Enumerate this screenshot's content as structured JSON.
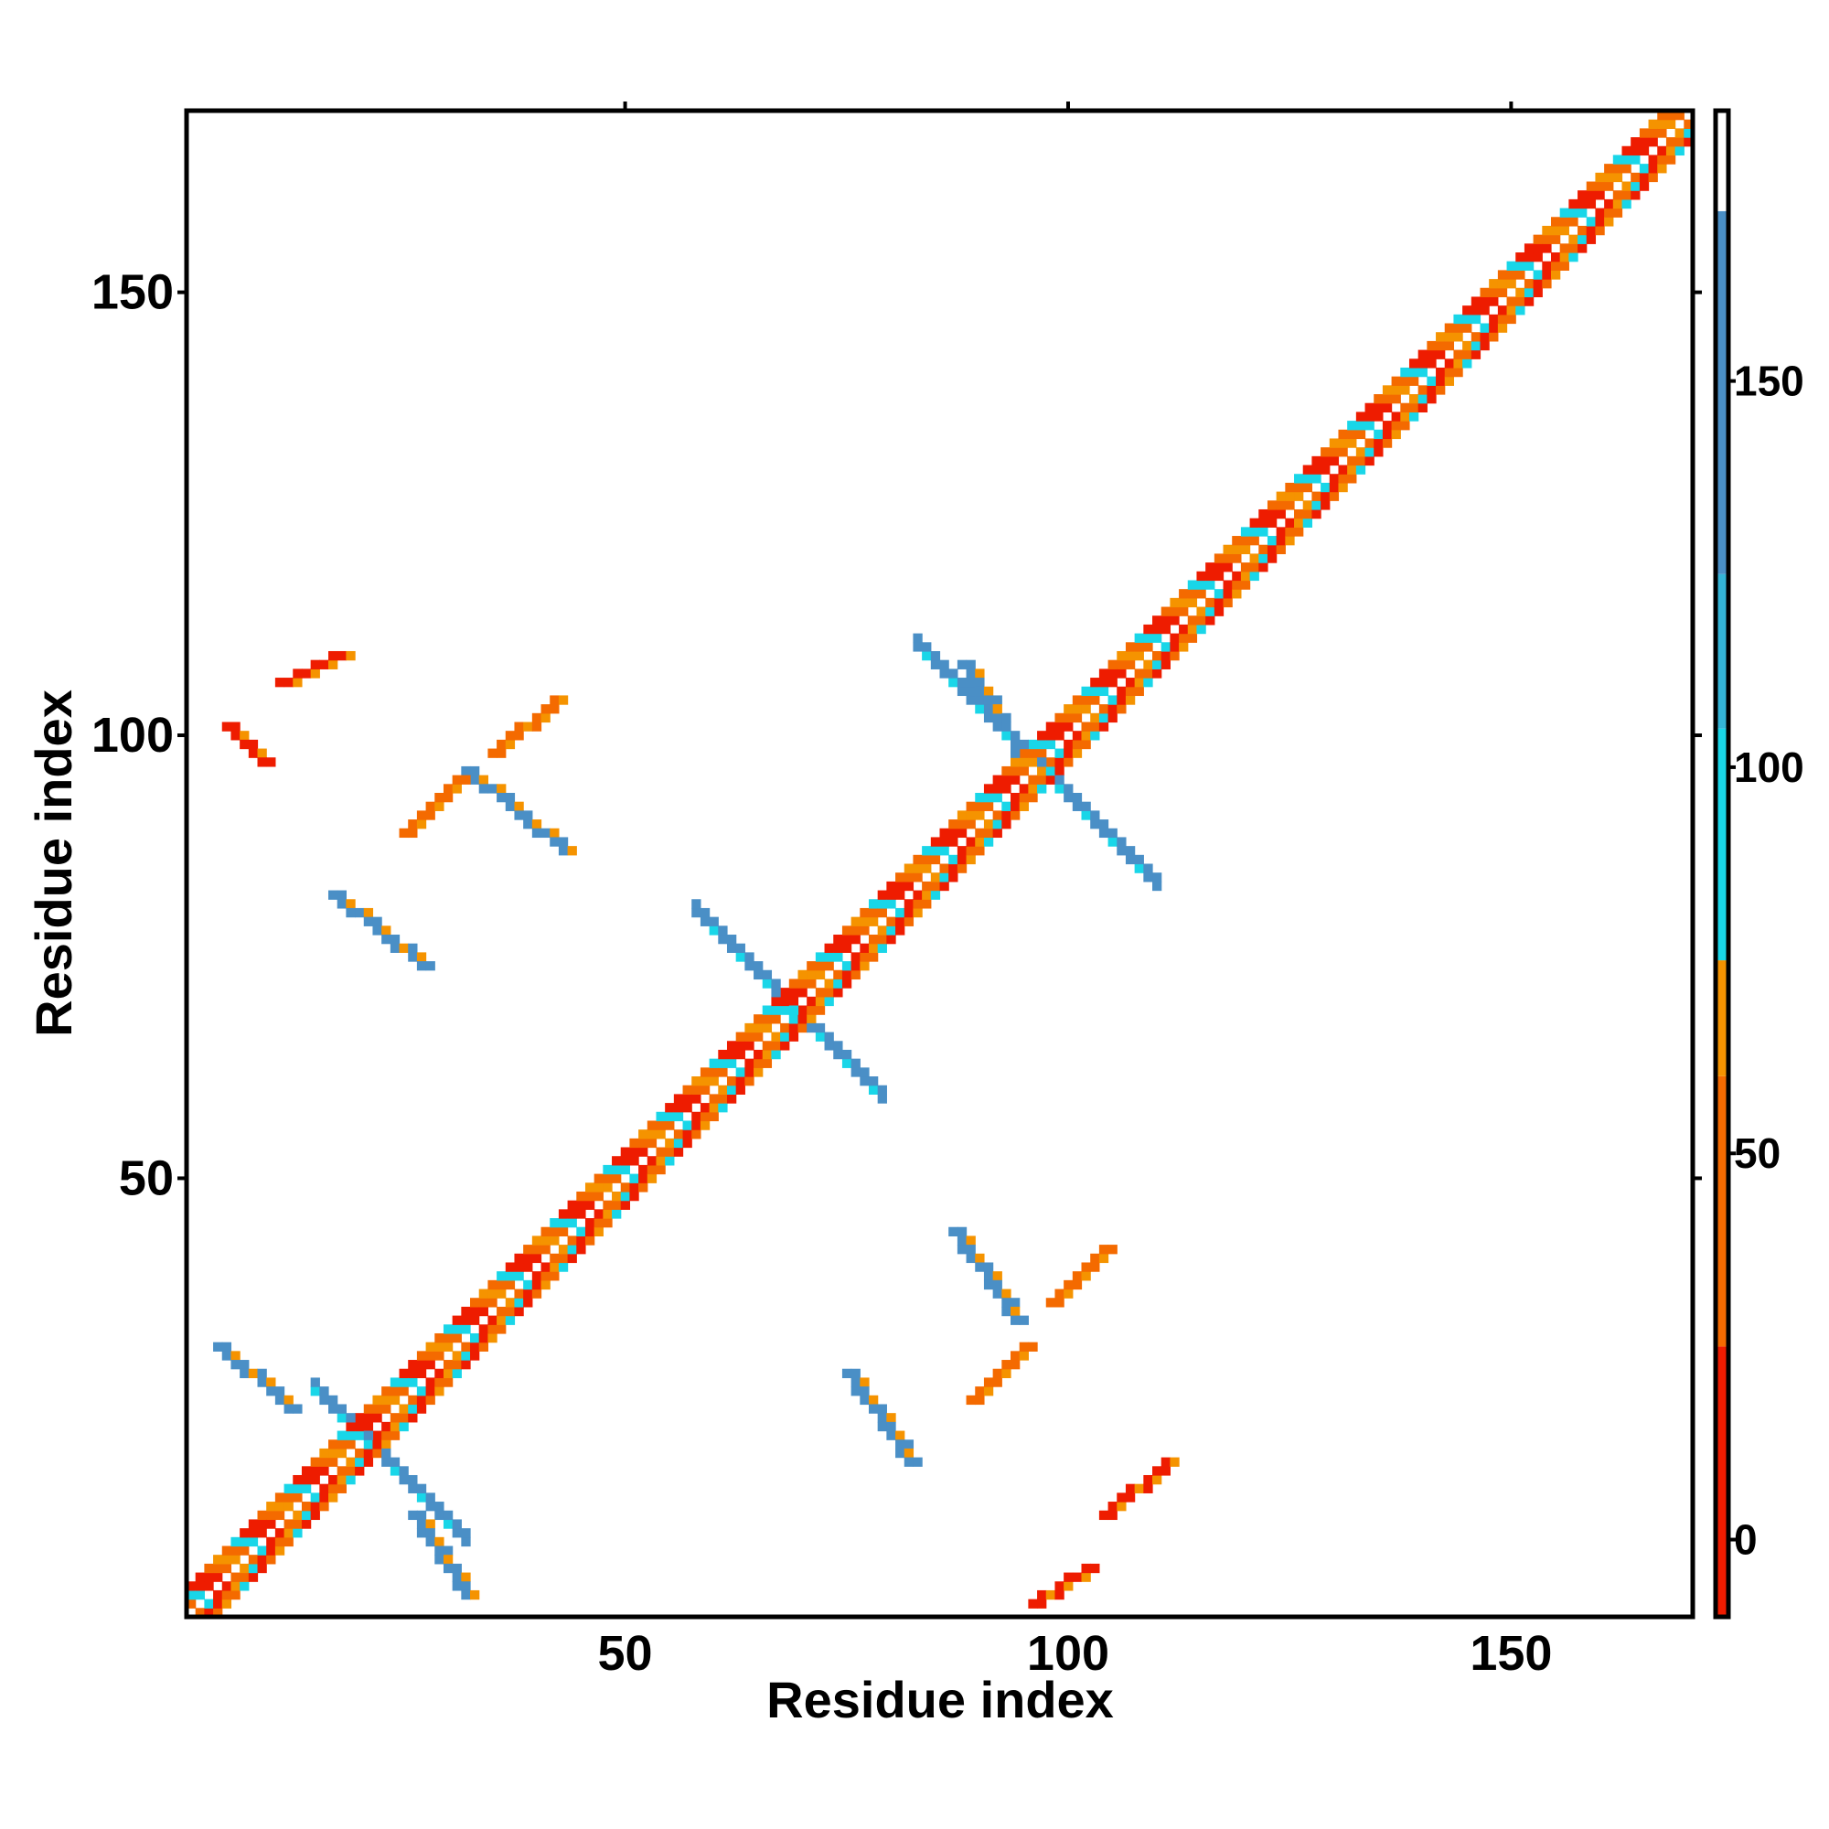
{
  "chart_data": {
    "type": "heatmap",
    "title": "",
    "xlabel": "Residue index",
    "ylabel": "Residue index",
    "xlim": [
      1,
      170
    ],
    "ylim": [
      1,
      170
    ],
    "x_ticks": [
      50,
      100,
      150
    ],
    "y_ticks": [
      50,
      100,
      150
    ],
    "colorbar": {
      "range": [
        -10,
        185
      ],
      "ticks": [
        0,
        50,
        100,
        150
      ],
      "bands": [
        {
          "from": -10,
          "to": 25,
          "color": "#ee1c00"
        },
        {
          "from": 25,
          "to": 60,
          "color": "#f46a00"
        },
        {
          "from": 60,
          "to": 75,
          "color": "#f59300"
        },
        {
          "from": 75,
          "to": 105,
          "color": "#19d6e8"
        },
        {
          "from": 105,
          "to": 125,
          "color": "#34b4d6"
        },
        {
          "from": 125,
          "to": 172,
          "color": "#4a8fc6"
        },
        {
          "from": 172,
          "to": 185,
          "color": "#ffffff"
        }
      ]
    },
    "regions": [
      {
        "kind": "diagonal",
        "x1": 1,
        "x2": 170,
        "half_width": 3
      },
      {
        "kind": "antidiagonal",
        "cx": 21,
        "cy": 20,
        "x1": 15,
        "x2": 32,
        "color": "#4a8fc6"
      },
      {
        "kind": "antidiagonal",
        "cx": 96,
        "cy": 97,
        "x1": 83,
        "x2": 110,
        "color": "#4a8fc6"
      },
      {
        "kind": "antidiagonal",
        "cx": 70,
        "cy": 68,
        "x1": 58,
        "x2": 79,
        "color": "#4a8fc6"
      },
      {
        "kind": "segment",
        "x1": 4,
        "y1": 31,
        "x2": 12,
        "y2": 24,
        "color": "#4a8fc6"
      },
      {
        "kind": "segment",
        "x1": 26,
        "y1": 12,
        "x2": 32,
        "y2": 3,
        "color": "#4a8fc6"
      },
      {
        "kind": "segment",
        "x1": 75,
        "y1": 28,
        "x2": 82,
        "y2": 18,
        "color": "#4a8fc6"
      },
      {
        "kind": "segment",
        "x1": 87,
        "y1": 44,
        "x2": 94,
        "y2": 34,
        "color": "#4a8fc6"
      },
      {
        "kind": "segment",
        "x1": 17,
        "y1": 82,
        "x2": 27,
        "y2": 74,
        "color": "#4a8fc6"
      },
      {
        "kind": "segment",
        "x1": 32,
        "y1": 96,
        "x2": 43,
        "y2": 87,
        "color": "#4a8fc6"
      },
      {
        "kind": "segment",
        "x1": 88,
        "y1": 108,
        "x2": 95,
        "y2": 97,
        "color": "#4a8fc6"
      },
      {
        "kind": "segment",
        "x1": 5,
        "y1": 101,
        "x2": 9,
        "y2": 97,
        "color": "#ee1c00"
      },
      {
        "kind": "segment",
        "x1": 11,
        "y1": 106,
        "x2": 18,
        "y2": 109,
        "color": "#ee1c00"
      },
      {
        "kind": "segment",
        "x1": 96,
        "y1": 2,
        "x2": 102,
        "y2": 6,
        "color": "#ee1c00"
      },
      {
        "kind": "segment",
        "x1": 104,
        "y1": 12,
        "x2": 111,
        "y2": 18,
        "color": "#ee1c00"
      },
      {
        "kind": "segment",
        "x1": 25,
        "y1": 89,
        "x2": 31,
        "y2": 95,
        "color": "#f46a00"
      },
      {
        "kind": "segment",
        "x1": 35,
        "y1": 98,
        "x2": 42,
        "y2": 104,
        "color": "#f46a00"
      },
      {
        "kind": "segment",
        "x1": 89,
        "y1": 25,
        "x2": 95,
        "y2": 31,
        "color": "#f46a00"
      },
      {
        "kind": "segment",
        "x1": 98,
        "y1": 36,
        "x2": 104,
        "y2": 42,
        "color": "#f46a00"
      }
    ]
  }
}
